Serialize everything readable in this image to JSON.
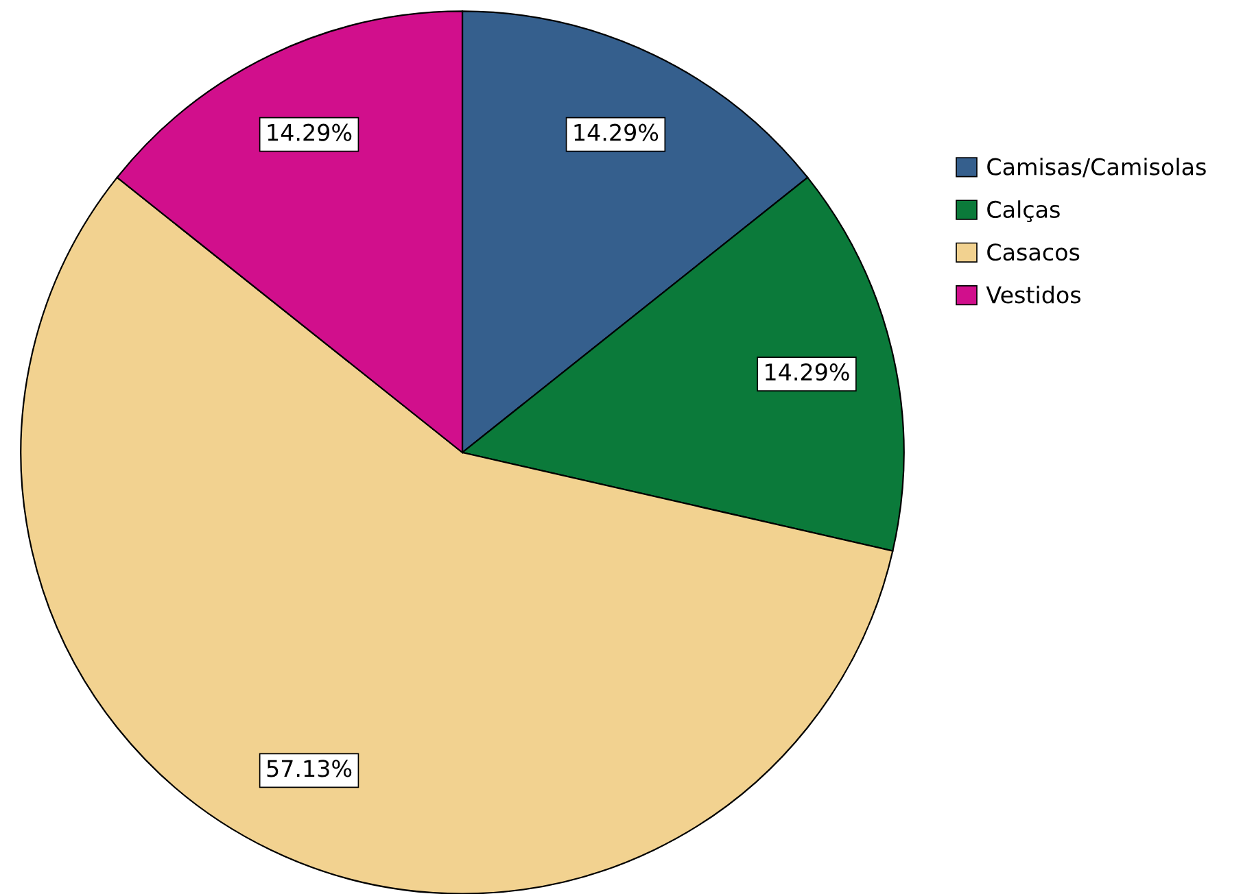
{
  "chart_data": {
    "type": "pie",
    "categories": [
      "Camisas/Camisolas",
      "Calças",
      "Casacos",
      "Vestidos"
    ],
    "values": [
      14.29,
      14.29,
      57.13,
      14.29
    ],
    "value_labels": [
      "14.29%",
      "14.29%",
      "57.13%",
      "14.29%"
    ],
    "colors": [
      "#355f8d",
      "#0b7a3a",
      "#f2d290",
      "#d10f8c"
    ],
    "legend": "right"
  }
}
